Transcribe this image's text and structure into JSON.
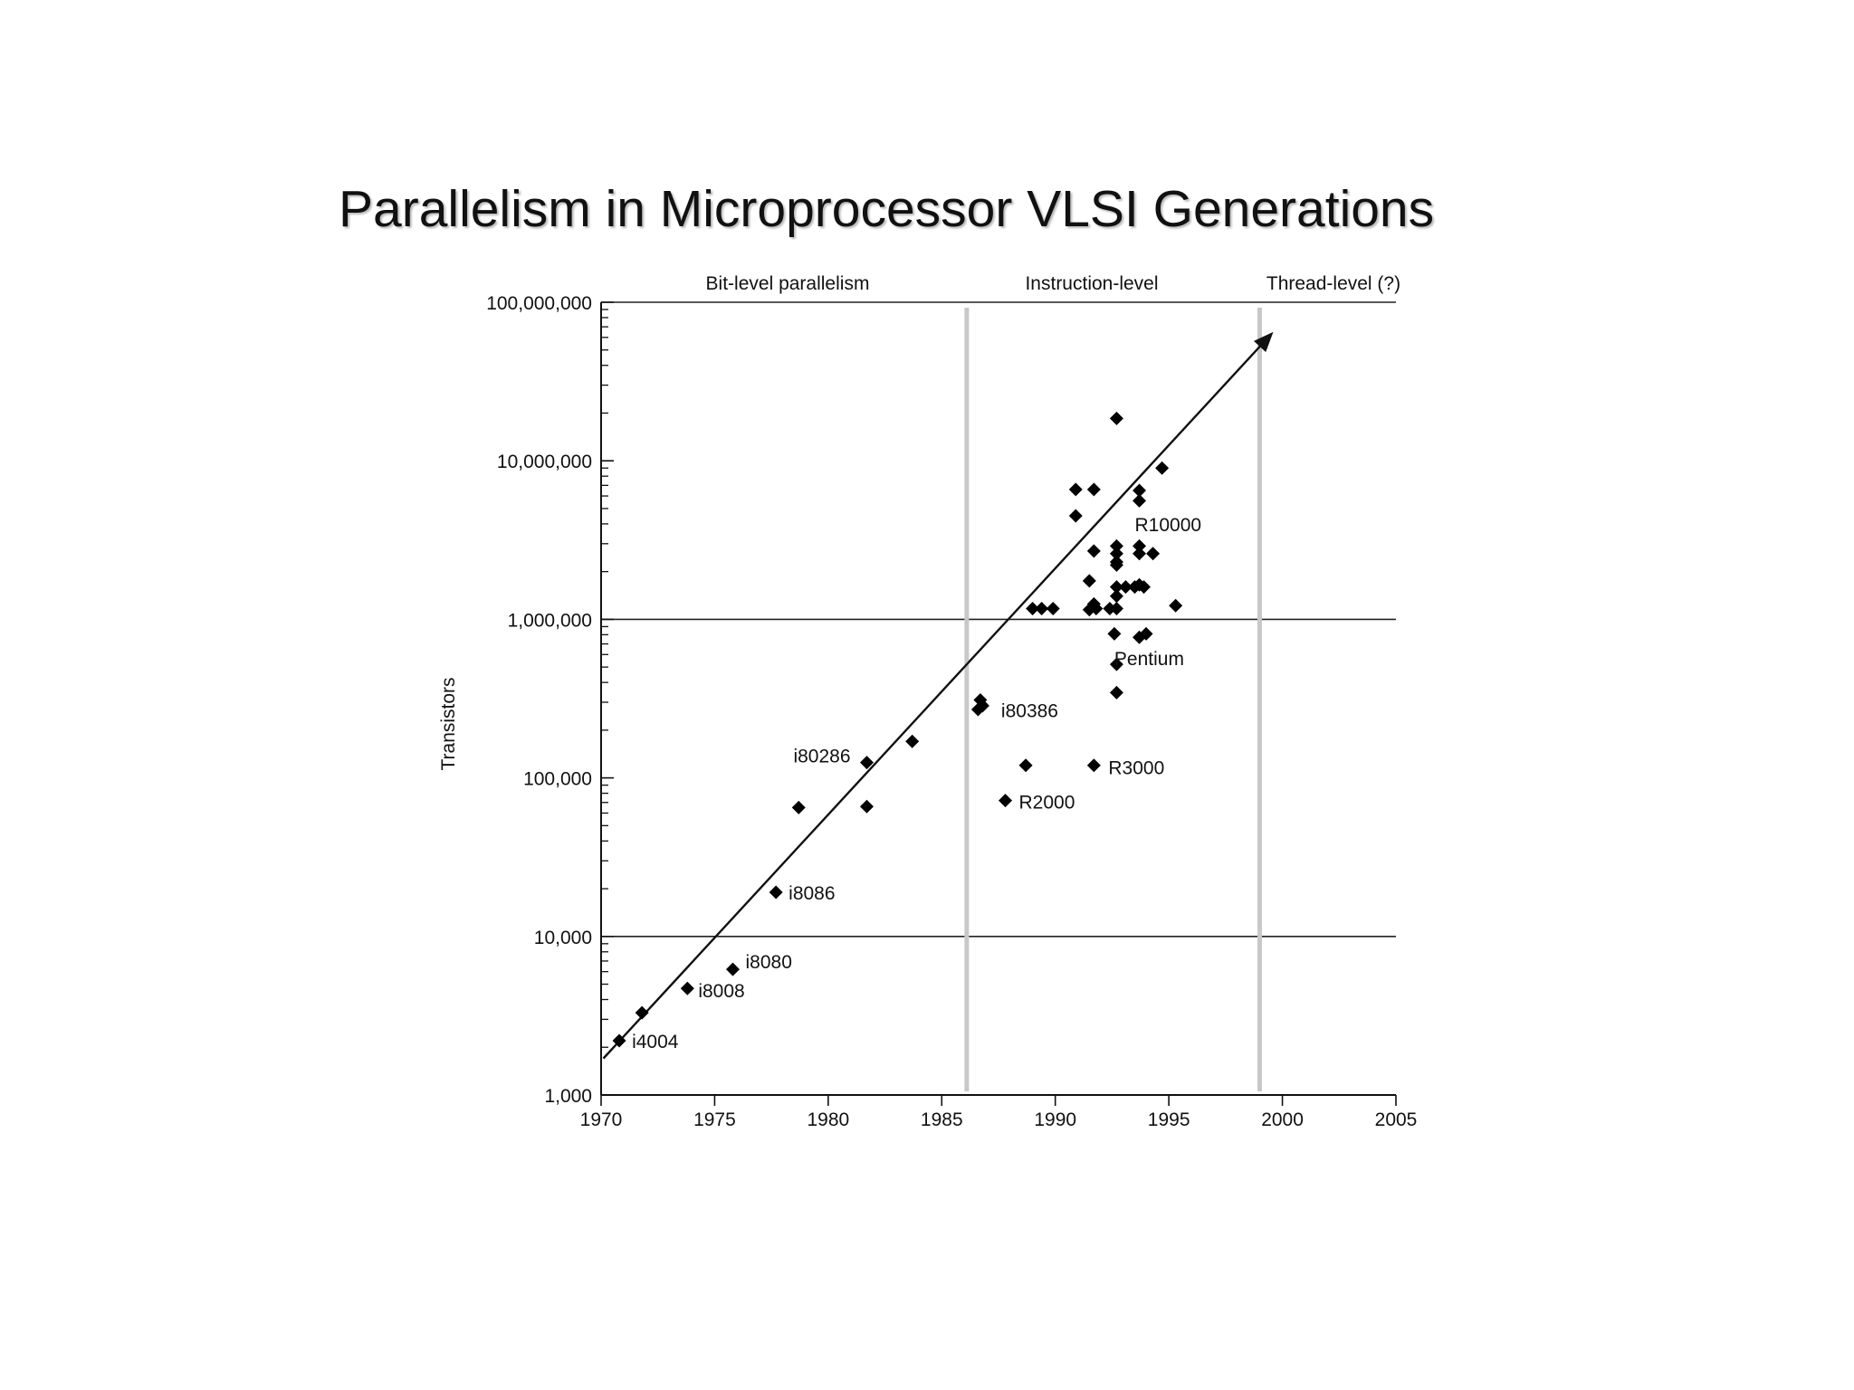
{
  "slide": {
    "title": "Parallelism in Microprocessor VLSI Generations"
  },
  "chart_data": {
    "type": "scatter",
    "title": "Parallelism in Microprocessor VLSI Generations",
    "xlabel": "",
    "ylabel": "Transistors",
    "xlim": [
      1970,
      2005
    ],
    "ylim": [
      1000,
      100000000
    ],
    "y_scale": "log",
    "x_ticks": [
      1970,
      1975,
      1980,
      1985,
      1990,
      1995,
      2000,
      2005
    ],
    "x_tick_labels": [
      "1970",
      "1975",
      "1980",
      "1985",
      "1990",
      "1995",
      "2000",
      "2005"
    ],
    "y_ticks": [
      1000,
      10000,
      100000,
      1000000,
      10000000,
      100000000
    ],
    "y_tick_labels": [
      "1,000",
      "10,000",
      "100,000",
      "1,000,000",
      "10,000,000",
      "100,000,000"
    ],
    "grid": "horizontal lines at 10,000 / 1,000,000 / 100,000,000",
    "eras": [
      {
        "label": "Bit-level parallelism",
        "from": 1970,
        "to": 1986.1
      },
      {
        "label": "Instruction-level",
        "from": 1986.1,
        "to": 1999
      },
      {
        "label": "Thread-level (?)",
        "from": 1999,
        "to": 2005
      }
    ],
    "era_boundaries": [
      1986.1,
      1999
    ],
    "trend_line": {
      "from": [
        1970.1,
        1700
      ],
      "to": [
        1999.6,
        65000000
      ]
    },
    "points": [
      {
        "x": 1970.8,
        "y": 2200,
        "label": "i4004"
      },
      {
        "x": 1971.8,
        "y": 3300
      },
      {
        "x": 1973.8,
        "y": 4700,
        "label": "i8008"
      },
      {
        "x": 1975.8,
        "y": 6200,
        "label": "i8080"
      },
      {
        "x": 1977.7,
        "y": 19000,
        "label": "i8086"
      },
      {
        "x": 1978.7,
        "y": 65000
      },
      {
        "x": 1981.7,
        "y": 125000,
        "label": "i80286"
      },
      {
        "x": 1981.7,
        "y": 66000
      },
      {
        "x": 1983.7,
        "y": 170000
      },
      {
        "x": 1986.6,
        "y": 270000
      },
      {
        "x": 1986.7,
        "y": 310000,
        "label": "i80386"
      },
      {
        "x": 1986.8,
        "y": 285000
      },
      {
        "x": 1987.8,
        "y": 72000,
        "label": "R2000"
      },
      {
        "x": 1988.7,
        "y": 120000
      },
      {
        "x": 1989.0,
        "y": 1170000
      },
      {
        "x": 1989.4,
        "y": 1170000
      },
      {
        "x": 1989.9,
        "y": 1170000
      },
      {
        "x": 1990.9,
        "y": 6600000
      },
      {
        "x": 1990.9,
        "y": 4500000
      },
      {
        "x": 1991.5,
        "y": 1750000
      },
      {
        "x": 1991.5,
        "y": 1150000
      },
      {
        "x": 1991.7,
        "y": 2700000
      },
      {
        "x": 1991.7,
        "y": 6600000
      },
      {
        "x": 1991.7,
        "y": 1250000
      },
      {
        "x": 1991.7,
        "y": 120000,
        "label": "R3000"
      },
      {
        "x": 1991.8,
        "y": 1170000
      },
      {
        "x": 1992.4,
        "y": 1170000
      },
      {
        "x": 1992.6,
        "y": 810000
      },
      {
        "x": 1992.7,
        "y": 18500000
      },
      {
        "x": 1992.7,
        "y": 2900000
      },
      {
        "x": 1992.7,
        "y": 2600000
      },
      {
        "x": 1992.7,
        "y": 2300000
      },
      {
        "x": 1992.7,
        "y": 2200000
      },
      {
        "x": 1992.7,
        "y": 1600000
      },
      {
        "x": 1992.7,
        "y": 1400000
      },
      {
        "x": 1992.7,
        "y": 1170000
      },
      {
        "x": 1992.7,
        "y": 520000
      },
      {
        "x": 1992.7,
        "y": 345000
      },
      {
        "x": 1993.1,
        "y": 1600000
      },
      {
        "x": 1993.5,
        "y": 1600000
      },
      {
        "x": 1993.7,
        "y": 6500000
      },
      {
        "x": 1993.7,
        "y": 5600000
      },
      {
        "x": 1993.7,
        "y": 2900000
      },
      {
        "x": 1993.7,
        "y": 2600000
      },
      {
        "x": 1993.7,
        "y": 1650000
      },
      {
        "x": 1993.7,
        "y": 770000
      },
      {
        "x": 1993.9,
        "y": 1600000
      },
      {
        "x": 1994.0,
        "y": 810000
      },
      {
        "x": 1994.3,
        "y": 2600000
      },
      {
        "x": 1994.7,
        "y": 9000000
      },
      {
        "x": 1995.3,
        "y": 1220000
      }
    ],
    "annotations": [
      {
        "text": "R10000",
        "x": 1993.5,
        "y": 4000000
      },
      {
        "text": "Pentium",
        "x": 1992.6,
        "y": 570000
      }
    ]
  }
}
